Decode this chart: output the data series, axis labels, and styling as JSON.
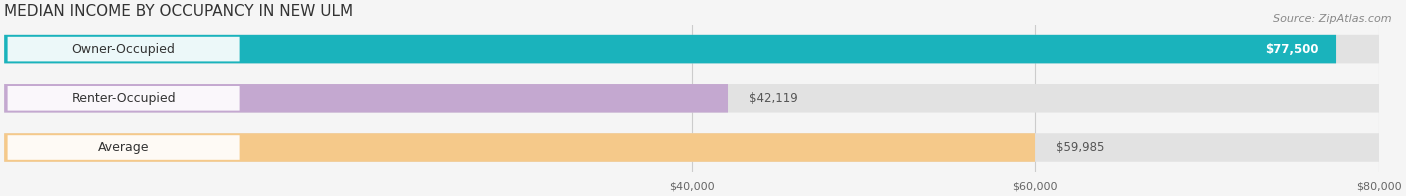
{
  "title": "MEDIAN INCOME BY OCCUPANCY IN NEW ULM",
  "source": "Source: ZipAtlas.com",
  "categories": [
    "Owner-Occupied",
    "Renter-Occupied",
    "Average"
  ],
  "values": [
    77500,
    42119,
    59985
  ],
  "labels": [
    "$77,500",
    "$42,119",
    "$59,985"
  ],
  "bar_colors": [
    "#1ab3bc",
    "#c4a8d0",
    "#f5c98a"
  ],
  "bar_bg_color": "#e2e2e2",
  "label_box_color": "#ffffff",
  "xlim_min": 0,
  "xlim_max": 80000,
  "xticks": [
    40000,
    60000,
    80000
  ],
  "xticklabels": [
    "$40,000",
    "$60,000",
    "$80,000"
  ],
  "title_fontsize": 11,
  "source_fontsize": 8,
  "bar_label_fontsize": 8.5,
  "category_fontsize": 9,
  "figsize": [
    14.06,
    1.96
  ],
  "dpi": 100,
  "background_color": "#f5f5f5"
}
